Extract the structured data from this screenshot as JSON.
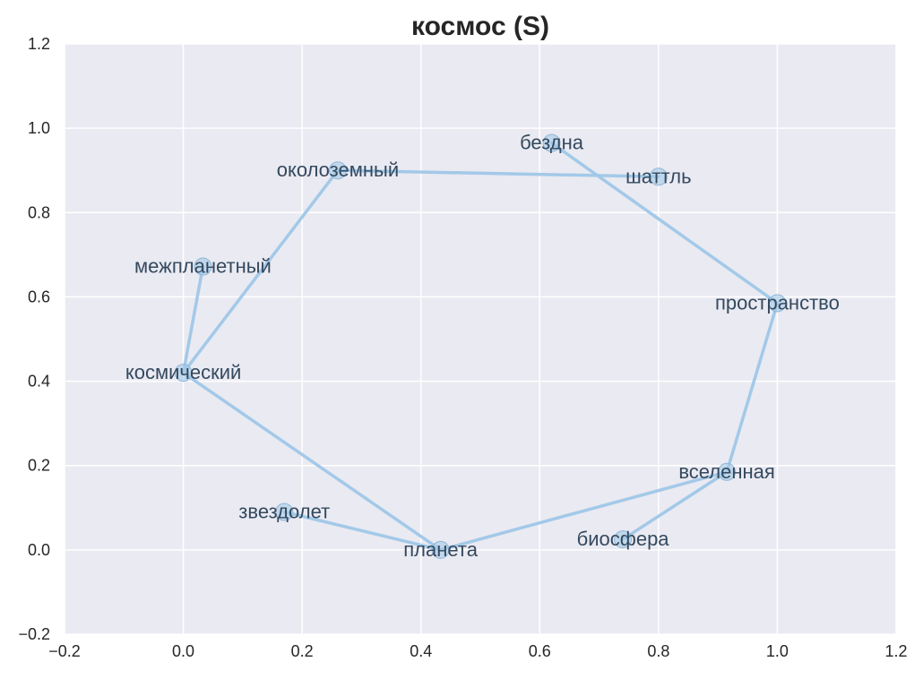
{
  "chart_data": {
    "type": "line",
    "title": "космос (S)",
    "xlabel": "",
    "ylabel": "",
    "xlim": [
      -0.2,
      1.2
    ],
    "ylim": [
      -0.2,
      1.2
    ],
    "xticks": [
      -0.2,
      0.0,
      0.2,
      0.4,
      0.6,
      0.8,
      1.0,
      1.2
    ],
    "yticks": [
      -0.2,
      0.0,
      0.2,
      0.4,
      0.6,
      0.8,
      1.0,
      1.2
    ],
    "xtick_labels": [
      "−0.2",
      "0.0",
      "0.2",
      "0.4",
      "0.6",
      "0.8",
      "1.0",
      "1.2"
    ],
    "ytick_labels": [
      "−0.2",
      "0.0",
      "0.2",
      "0.4",
      "0.6",
      "0.8",
      "1.0",
      "1.2"
    ],
    "grid": true,
    "colors": {
      "background": "#eaeaf2",
      "grid": "#ffffff",
      "line": "#a3c9e8",
      "marker": "#a3c9e8",
      "label": "#34495e"
    },
    "points": [
      {
        "label": "бездна",
        "x": 0.62,
        "y": 0.965
      },
      {
        "label": "шаттль",
        "x": 0.8,
        "y": 0.885
      },
      {
        "label": "околоземный",
        "x": 0.26,
        "y": 0.9
      },
      {
        "label": "межпланетный",
        "x": 0.033,
        "y": 0.672
      },
      {
        "label": "космический",
        "x": 0.0,
        "y": 0.42
      },
      {
        "label": "пространство",
        "x": 1.0,
        "y": 0.585
      },
      {
        "label": "вселенная",
        "x": 0.915,
        "y": 0.185
      },
      {
        "label": "биосфера",
        "x": 0.74,
        "y": 0.025
      },
      {
        "label": "звездолет",
        "x": 0.17,
        "y": 0.09
      },
      {
        "label": "планета",
        "x": 0.433,
        "y": 0.0
      }
    ],
    "edges": [
      [
        "бездна",
        "пространство"
      ],
      [
        "пространство",
        "вселенная"
      ],
      [
        "вселенная",
        "биосфера"
      ],
      [
        "вселенная",
        "планета"
      ],
      [
        "планета",
        "звездолет"
      ],
      [
        "планета",
        "космический"
      ],
      [
        "космический",
        "межпланетный"
      ],
      [
        "космический",
        "околоземный"
      ],
      [
        "околоземный",
        "шаттль"
      ]
    ]
  }
}
